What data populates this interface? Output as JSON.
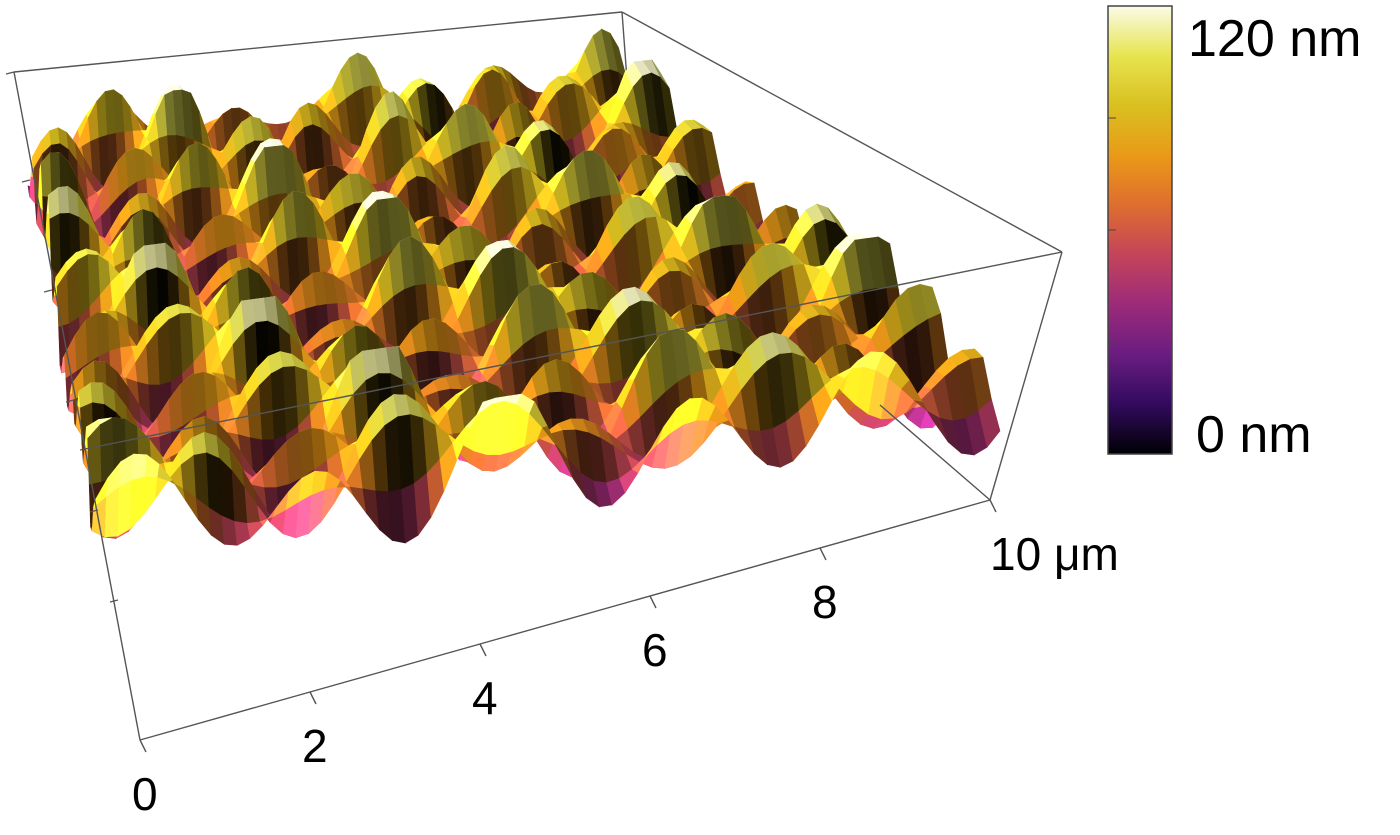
{
  "chart_data": {
    "type": "surface-3d",
    "x_axis": {
      "ticks": [
        0,
        2,
        4,
        6,
        8,
        10
      ],
      "tick_labels": [
        "0",
        "2",
        "4",
        "6",
        "8",
        "10 μm"
      ],
      "range": [
        0,
        10
      ],
      "unit": "μm"
    },
    "z_axis": {
      "range": [
        0,
        120
      ],
      "unit": "nm"
    },
    "colorbar": {
      "max_label": "120 nm",
      "min_label": "0 nm",
      "colormap": "inferno",
      "stops": [
        "#000004",
        "#320a5e",
        "#6a1d80",
        "#9c2a7a",
        "#c4445a",
        "#de6e2e",
        "#ea9a18",
        "#d9c020",
        "#e7e450",
        "#fbfbe8"
      ]
    },
    "surface": {
      "description_values": "periodic hill-and-valley topography; peak heights near 120 nm, valleys near 0 nm",
      "period_um": 2.1
    }
  }
}
